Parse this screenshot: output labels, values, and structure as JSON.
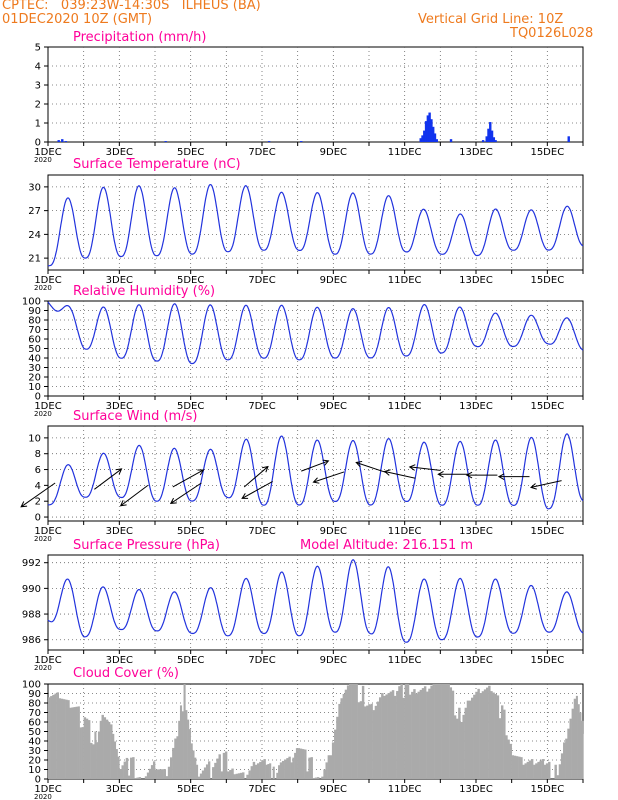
{
  "header": {
    "line1": "CPTEC:   039:23W-14:30S   ILHEUS (BA)",
    "line2": "01DEC2020 10Z (GMT)",
    "right1": "Vertical Grid Line: 10Z",
    "right2": "TQ0126L028"
  },
  "colors": {
    "header": "#ee7a1e",
    "title": "#ff0099",
    "series": "#2233dd",
    "cloud": "#aaaaaa",
    "precip": "#1133ee"
  },
  "x_ticks": [
    "1DEC",
    "3DEC",
    "5DEC",
    "7DEC",
    "9DEC",
    "11DEC",
    "13DEC",
    "15DEC"
  ],
  "x_tick_extra": "2020",
  "chart_data": [
    {
      "type": "bar",
      "title": "Precipitation (mm/h)",
      "ylim": [
        0,
        5
      ],
      "yticks": [
        "0",
        "1",
        "2",
        "3",
        "4",
        "5"
      ],
      "x_range_days": [
        1,
        16
      ],
      "bars": [
        [
          1.3,
          0.1
        ],
        [
          1.4,
          0.15
        ],
        [
          1.5,
          0.05
        ],
        [
          4.3,
          0.05
        ],
        [
          7.2,
          0.05
        ],
        [
          8.1,
          0.05
        ],
        [
          11.45,
          0.2
        ],
        [
          11.5,
          0.35
        ],
        [
          11.55,
          0.6
        ],
        [
          11.6,
          1.1
        ],
        [
          11.65,
          1.4
        ],
        [
          11.7,
          1.55
        ],
        [
          11.75,
          1.2
        ],
        [
          11.8,
          0.8
        ],
        [
          11.85,
          0.45
        ],
        [
          11.9,
          0.15
        ],
        [
          12.3,
          0.15
        ],
        [
          13.2,
          0.1
        ],
        [
          13.3,
          0.3
        ],
        [
          13.35,
          0.7
        ],
        [
          13.4,
          1.05
        ],
        [
          13.45,
          0.6
        ],
        [
          13.5,
          0.25
        ],
        [
          13.55,
          0.1
        ],
        [
          15.6,
          0.3
        ]
      ]
    },
    {
      "type": "line",
      "title": "Surface Temperature (nC)",
      "ylim": [
        19.5,
        31.5
      ],
      "yticks": [
        "21",
        "24",
        "27",
        "30"
      ],
      "x_range_days": [
        1,
        16
      ],
      "ranges": [
        [
          20.0,
          27.5
        ],
        [
          21.0,
          29.5
        ],
        [
          21.2,
          30.3
        ],
        [
          21.3,
          30.0
        ],
        [
          21.5,
          29.8
        ],
        [
          21.8,
          30.7
        ],
        [
          22.0,
          29.7
        ],
        [
          22.0,
          29.0
        ],
        [
          21.5,
          29.5
        ],
        [
          21.5,
          29.0
        ],
        [
          21.8,
          28.8
        ],
        [
          21.5,
          25.8
        ],
        [
          21.3,
          27.2
        ],
        [
          22.0,
          27.2
        ],
        [
          22.0,
          27.0
        ],
        [
          22.5,
          28.0
        ]
      ]
    },
    {
      "type": "line",
      "title": "Relative Humidity (%)",
      "ylim": [
        0,
        100
      ],
      "yticks": [
        "0",
        "10",
        "20",
        "30",
        "40",
        "50",
        "60",
        "70",
        "80",
        "90",
        "100"
      ],
      "x_range_days": [
        1,
        16
      ],
      "ranges": [
        [
          99,
          99
        ],
        [
          50,
          92
        ],
        [
          40,
          95
        ],
        [
          37,
          97
        ],
        [
          34,
          97
        ],
        [
          38,
          95
        ],
        [
          40,
          96
        ],
        [
          38,
          95
        ],
        [
          40,
          92
        ],
        [
          40,
          92
        ],
        [
          42,
          94
        ],
        [
          45,
          98
        ],
        [
          52,
          90
        ],
        [
          52,
          85
        ],
        [
          55,
          85
        ],
        [
          48,
          80
        ]
      ]
    },
    {
      "type": "line",
      "title": "Surface Wind (m/s)",
      "ylim": [
        -0.5,
        11.5
      ],
      "yticks": [
        "0",
        "2",
        "4",
        "6",
        "8",
        "10"
      ],
      "x_range_days": [
        1,
        16
      ],
      "ranges": [
        [
          1.5,
          5.5
        ],
        [
          2.5,
          7.5
        ],
        [
          2.5,
          8.5
        ],
        [
          2.0,
          9.5
        ],
        [
          2.0,
          8.0
        ],
        [
          2.5,
          9.0
        ],
        [
          1.5,
          10.5
        ],
        [
          1.5,
          10.0
        ],
        [
          2.0,
          9.5
        ],
        [
          1.5,
          9.8
        ],
        [
          2.0,
          10.0
        ],
        [
          1.5,
          9.0
        ],
        [
          1.5,
          10.0
        ],
        [
          1.5,
          9.5
        ],
        [
          1.0,
          10.5
        ],
        [
          2.0,
          10.5
        ]
      ],
      "arrows": [
        [
          1.2,
          4.3,
          -1,
          -0.7
        ],
        [
          2.3,
          3.5,
          0.8,
          0.6
        ],
        [
          3.8,
          4.0,
          -0.8,
          -0.6
        ],
        [
          4.5,
          3.8,
          0.9,
          0.5
        ],
        [
          5.3,
          4.3,
          -0.9,
          -0.6
        ],
        [
          6.5,
          3.8,
          0.7,
          0.6
        ],
        [
          7.3,
          4.5,
          -0.9,
          -0.5
        ],
        [
          8.1,
          5.8,
          0.8,
          0.3
        ],
        [
          9.3,
          5.7,
          -0.9,
          -0.3
        ],
        [
          10.5,
          5.6,
          -0.9,
          0.3
        ],
        [
          11.3,
          4.9,
          -0.9,
          0.2
        ],
        [
          12.0,
          5.9,
          -0.9,
          0.1
        ],
        [
          12.8,
          5.4,
          -0.9,
          0
        ],
        [
          13.6,
          5.3,
          -0.9,
          0
        ],
        [
          14.5,
          5.1,
          -0.9,
          0
        ],
        [
          15.4,
          4.6,
          -0.9,
          -0.2
        ]
      ]
    },
    {
      "type": "line",
      "title": "Surface Pressure (hPa)",
      "annotation": "Model Altitude: 216.151 m",
      "ylim": [
        985.2,
        992.6
      ],
      "yticks": [
        "986",
        "988",
        "990",
        "992"
      ],
      "x_range_days": [
        1,
        16
      ],
      "ranges": [
        [
          987.5,
          991.0
        ],
        [
          986.2,
          990.5
        ],
        [
          986.8,
          989.8
        ],
        [
          986.7,
          990.0
        ],
        [
          986.5,
          989.5
        ],
        [
          986.3,
          990.5
        ],
        [
          986.5,
          991.0
        ],
        [
          986.3,
          991.5
        ],
        [
          986.6,
          991.9
        ],
        [
          986.5,
          992.5
        ],
        [
          985.8,
          991.0
        ],
        [
          986.0,
          990.5
        ],
        [
          986.2,
          991.0
        ],
        [
          986.5,
          990.5
        ],
        [
          986.6,
          990.0
        ],
        [
          986.5,
          989.5
        ]
      ]
    },
    {
      "type": "bar",
      "title": "Cloud Cover (%)",
      "ylim": [
        0,
        100
      ],
      "yticks": [
        "0",
        "10",
        "20",
        "30",
        "40",
        "50",
        "60",
        "70",
        "80",
        "90",
        "100"
      ],
      "x_range_days": [
        1,
        16
      ],
      "segments": [
        [
          1.0,
          96
        ],
        [
          1.3,
          90
        ],
        [
          1.6,
          75
        ],
        [
          2.0,
          60
        ],
        [
          2.3,
          40
        ],
        [
          2.5,
          75
        ],
        [
          2.8,
          50
        ],
        [
          3.0,
          8
        ],
        [
          3.3,
          15
        ],
        [
          3.6,
          5
        ],
        [
          4.0,
          15
        ],
        [
          4.3,
          3
        ],
        [
          4.6,
          40
        ],
        [
          4.8,
          95
        ],
        [
          5.0,
          45
        ],
        [
          5.2,
          5
        ],
        [
          5.6,
          10
        ],
        [
          5.9,
          20
        ],
        [
          6.2,
          15
        ],
        [
          6.5,
          5
        ],
        [
          6.8,
          15
        ],
        [
          7.1,
          10
        ],
        [
          7.3,
          3
        ],
        [
          7.5,
          25
        ],
        [
          7.8,
          20
        ],
        [
          8.0,
          30
        ],
        [
          8.3,
          15
        ],
        [
          8.6,
          5
        ],
        [
          8.9,
          30
        ],
        [
          9.2,
          85
        ],
        [
          9.5,
          95
        ],
        [
          9.8,
          88
        ],
        [
          10.1,
          80
        ],
        [
          10.4,
          90
        ],
        [
          10.7,
          85
        ],
        [
          11.0,
          98
        ],
        [
          11.3,
          100
        ],
        [
          11.6,
          97
        ],
        [
          11.9,
          100
        ],
        [
          12.2,
          95
        ],
        [
          12.5,
          65
        ],
        [
          12.8,
          90
        ],
        [
          13.1,
          93
        ],
        [
          13.4,
          90
        ],
        [
          13.7,
          70
        ],
        [
          14.0,
          35
        ],
        [
          14.3,
          20
        ],
        [
          14.6,
          15
        ],
        [
          14.9,
          10
        ],
        [
          15.2,
          5
        ],
        [
          15.5,
          50
        ],
        [
          15.8,
          90
        ],
        [
          16.0,
          45
        ]
      ]
    }
  ]
}
